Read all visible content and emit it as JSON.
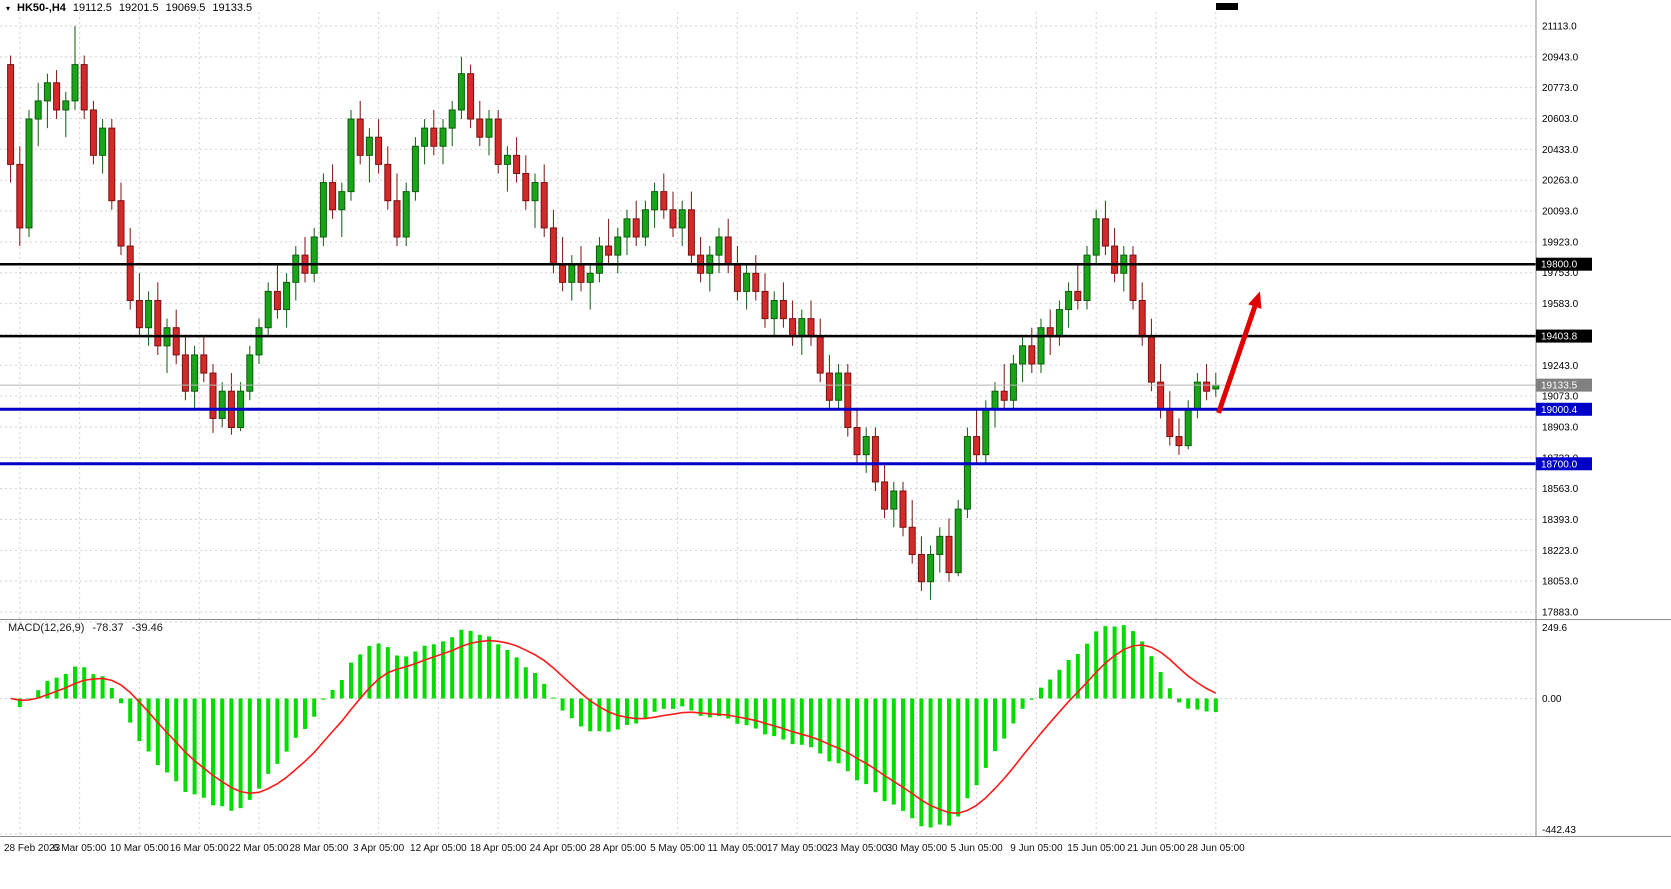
{
  "header": {
    "symbol": "HK50-,H4",
    "open": "19112.5",
    "high": "19201.5",
    "low": "19069.5",
    "close": "19133.5"
  },
  "colors": {
    "bull": "#1aa41a",
    "bull_border": "#0b5e0b",
    "bear": "#d22a2a",
    "bear_border": "#7c1010",
    "macd_hist": "#00dc00",
    "macd_signal": "#ff1a1a",
    "grid": "#d2d2d2",
    "level_black": "#000000",
    "level_blue": "#0000c8",
    "current_price_bg": "#808080",
    "arrow": "#e00000"
  },
  "chart_data": {
    "type": "candlestick",
    "title": "HK50- H4 candlestick chart with MACD(12,26,9), support/resistance levels and up-trend arrow",
    "symbol": "HK50-",
    "timeframe": "H4",
    "candles": [
      [
        20900,
        20950,
        20250,
        20350
      ],
      [
        20350,
        20450,
        19900,
        20000
      ],
      [
        20000,
        20650,
        19950,
        20600
      ],
      [
        20600,
        20800,
        20450,
        20700
      ],
      [
        20700,
        20850,
        20550,
        20800
      ],
      [
        20800,
        20870,
        20600,
        20650
      ],
      [
        20650,
        20750,
        20500,
        20700
      ],
      [
        20700,
        21113,
        20650,
        20900
      ],
      [
        20900,
        20950,
        20600,
        20650
      ],
      [
        20650,
        20700,
        20350,
        20400
      ],
      [
        20400,
        20600,
        20300,
        20550
      ],
      [
        20550,
        20600,
        20100,
        20150
      ],
      [
        20150,
        20250,
        19850,
        19900
      ],
      [
        19900,
        20000,
        19550,
        19600
      ],
      [
        19600,
        19750,
        19400,
        19450
      ],
      [
        19450,
        19650,
        19350,
        19600
      ],
      [
        19600,
        19700,
        19300,
        19350
      ],
      [
        19350,
        19500,
        19200,
        19450
      ],
      [
        19450,
        19550,
        19250,
        19300
      ],
      [
        19300,
        19400,
        19050,
        19100
      ],
      [
        19100,
        19350,
        19000,
        19300
      ],
      [
        19300,
        19400,
        19150,
        19200
      ],
      [
        19200,
        19250,
        18870,
        18950
      ],
      [
        18950,
        19150,
        18900,
        19100
      ],
      [
        19100,
        19200,
        18860,
        18900
      ],
      [
        18900,
        19150,
        18880,
        19100
      ],
      [
        19100,
        19350,
        19050,
        19300
      ],
      [
        19300,
        19500,
        19250,
        19450
      ],
      [
        19450,
        19700,
        19400,
        19650
      ],
      [
        19650,
        19800,
        19500,
        19550
      ],
      [
        19550,
        19750,
        19450,
        19700
      ],
      [
        19700,
        19900,
        19600,
        19850
      ],
      [
        19850,
        19950,
        19700,
        19750
      ],
      [
        19750,
        20000,
        19700,
        19950
      ],
      [
        19950,
        20300,
        19900,
        20250
      ],
      [
        20250,
        20350,
        20050,
        20100
      ],
      [
        20100,
        20250,
        19950,
        20200
      ],
      [
        20200,
        20650,
        20150,
        20600
      ],
      [
        20600,
        20700,
        20350,
        20400
      ],
      [
        20400,
        20550,
        20250,
        20500
      ],
      [
        20500,
        20600,
        20300,
        20350
      ],
      [
        20350,
        20450,
        20100,
        20150
      ],
      [
        20150,
        20300,
        19900,
        19950
      ],
      [
        19950,
        20250,
        19900,
        20200
      ],
      [
        20200,
        20500,
        20150,
        20450
      ],
      [
        20450,
        20600,
        20350,
        20550
      ],
      [
        20550,
        20650,
        20400,
        20450
      ],
      [
        20450,
        20600,
        20350,
        20550
      ],
      [
        20550,
        20700,
        20450,
        20650
      ],
      [
        20650,
        20943,
        20600,
        20850
      ],
      [
        20850,
        20900,
        20550,
        20600
      ],
      [
        20600,
        20700,
        20450,
        20500
      ],
      [
        20500,
        20650,
        20400,
        20600
      ],
      [
        20600,
        20650,
        20300,
        20350
      ],
      [
        20350,
        20450,
        20200,
        20400
      ],
      [
        20400,
        20500,
        20250,
        20300
      ],
      [
        20300,
        20400,
        20100,
        20150
      ],
      [
        20150,
        20300,
        20000,
        20250
      ],
      [
        20250,
        20350,
        19950,
        20000
      ],
      [
        20000,
        20100,
        19750,
        19800
      ],
      [
        19800,
        19950,
        19650,
        19700
      ],
      [
        19700,
        19850,
        19600,
        19800
      ],
      [
        19800,
        19900,
        19650,
        19700
      ],
      [
        19700,
        19800,
        19550,
        19750
      ],
      [
        19750,
        19950,
        19700,
        19900
      ],
      [
        19900,
        20050,
        19800,
        19850
      ],
      [
        19850,
        20000,
        19750,
        19950
      ],
      [
        19950,
        20100,
        19850,
        20050
      ],
      [
        20050,
        20150,
        19900,
        19950
      ],
      [
        19950,
        20150,
        19900,
        20100
      ],
      [
        20100,
        20250,
        20000,
        20200
      ],
      [
        20200,
        20300,
        20050,
        20100
      ],
      [
        20100,
        20200,
        19950,
        20000
      ],
      [
        20000,
        20150,
        19900,
        20100
      ],
      [
        20100,
        20200,
        19800,
        19850
      ],
      [
        19850,
        19950,
        19700,
        19750
      ],
      [
        19750,
        19900,
        19650,
        19850
      ],
      [
        19850,
        20000,
        19750,
        19950
      ],
      [
        19950,
        20050,
        19750,
        19800
      ],
      [
        19800,
        19900,
        19600,
        19650
      ],
      [
        19650,
        19800,
        19550,
        19750
      ],
      [
        19750,
        19850,
        19600,
        19650
      ],
      [
        19650,
        19750,
        19450,
        19500
      ],
      [
        19500,
        19650,
        19400,
        19600
      ],
      [
        19600,
        19700,
        19450,
        19500
      ],
      [
        19500,
        19600,
        19350,
        19400
      ],
      [
        19400,
        19550,
        19300,
        19500
      ],
      [
        19500,
        19600,
        19350,
        19400
      ],
      [
        19400,
        19500,
        19150,
        19200
      ],
      [
        19200,
        19300,
        19000,
        19050
      ],
      [
        19050,
        19250,
        19000,
        19200
      ],
      [
        19200,
        19250,
        18850,
        18900
      ],
      [
        18900,
        19000,
        18700,
        18750
      ],
      [
        18750,
        18900,
        18650,
        18850
      ],
      [
        18850,
        18900,
        18550,
        18600
      ],
      [
        18600,
        18700,
        18400,
        18450
      ],
      [
        18450,
        18600,
        18350,
        18550
      ],
      [
        18550,
        18600,
        18300,
        18350
      ],
      [
        18350,
        18500,
        18150,
        18200
      ],
      [
        18200,
        18300,
        18000,
        18050
      ],
      [
        18050,
        18250,
        17950,
        18200
      ],
      [
        18200,
        18350,
        18100,
        18300
      ],
      [
        18300,
        18400,
        18050,
        18100
      ],
      [
        18100,
        18500,
        18080,
        18450
      ],
      [
        18450,
        18900,
        18400,
        18850
      ],
      [
        18850,
        19000,
        18700,
        18750
      ],
      [
        18750,
        19050,
        18700,
        19000
      ],
      [
        19000,
        19150,
        18900,
        19100
      ],
      [
        19100,
        19250,
        19000,
        19050
      ],
      [
        19050,
        19300,
        19000,
        19250
      ],
      [
        19250,
        19400,
        19150,
        19350
      ],
      [
        19350,
        19450,
        19200,
        19250
      ],
      [
        19250,
        19500,
        19200,
        19450
      ],
      [
        19450,
        19550,
        19300,
        19400
      ],
      [
        19400,
        19600,
        19350,
        19550
      ],
      [
        19550,
        19700,
        19450,
        19650
      ],
      [
        19650,
        19800,
        19550,
        19600
      ],
      [
        19600,
        19900,
        19550,
        19850
      ],
      [
        19850,
        20100,
        19800,
        20050
      ],
      [
        20050,
        20150,
        19850,
        19900
      ],
      [
        19900,
        20000,
        19700,
        19750
      ],
      [
        19750,
        19900,
        19650,
        19850
      ],
      [
        19850,
        19900,
        19550,
        19600
      ],
      [
        19600,
        19700,
        19350,
        19400
      ],
      [
        19400,
        19500,
        19100,
        19150
      ],
      [
        19150,
        19250,
        18950,
        19000
      ],
      [
        19000,
        19100,
        18800,
        18850
      ],
      [
        18850,
        18950,
        18750,
        18800
      ],
      [
        18800,
        19050,
        18780,
        19000
      ],
      [
        19000,
        19200,
        18950,
        19150
      ],
      [
        19150,
        19250,
        19050,
        19100
      ],
      [
        19112.5,
        19201.5,
        19069.5,
        19133.5
      ]
    ],
    "x_labels": [
      {
        "label": "28 Feb 2023",
        "idx": 1
      },
      {
        "label": "6 Mar 05:00",
        "idx": 7.5
      },
      {
        "label": "10 Mar 05:00",
        "idx": 14
      },
      {
        "label": "16 Mar 05:00",
        "idx": 20.5
      },
      {
        "label": "22 Mar 05:00",
        "idx": 27
      },
      {
        "label": "28 Mar 05:00",
        "idx": 33.5
      },
      {
        "label": "3 Apr 05:00",
        "idx": 40
      },
      {
        "label": "12 Apr 05:00",
        "idx": 46.5
      },
      {
        "label": "18 Apr 05:00",
        "idx": 53
      },
      {
        "label": "24 Apr 05:00",
        "idx": 59.5
      },
      {
        "label": "28 Apr 05:00",
        "idx": 66
      },
      {
        "label": "5 May 05:00",
        "idx": 72.5
      },
      {
        "label": "11 May 05:00",
        "idx": 79
      },
      {
        "label": "17 May 05:00",
        "idx": 85.5
      },
      {
        "label": "23 May 05:00",
        "idx": 92
      },
      {
        "label": "30 May 05:00",
        "idx": 98.5
      },
      {
        "label": "5 Jun 05:00",
        "idx": 105
      },
      {
        "label": "9 Jun 05:00",
        "idx": 111.5
      },
      {
        "label": "15 Jun 05:00",
        "idx": 118
      },
      {
        "label": "21 Jun 05:00",
        "idx": 124.5
      },
      {
        "label": "28 Jun 05:00",
        "idx": 131
      }
    ],
    "y_axis": {
      "min": 17850,
      "max": 21190,
      "ticks": [
        "21113.0",
        "20943.0",
        "20773.0",
        "20603.0",
        "20433.0",
        "20263.0",
        "20093.0",
        "19923.0",
        "19753.0",
        "19583.0",
        "19413.0",
        "19243.0",
        "19073.0",
        "18903.0",
        "18733.0",
        "18563.0",
        "18393.0",
        "18223.0",
        "18053.0",
        "17883.0"
      ]
    },
    "hlines": [
      {
        "label": "19800.0",
        "value": 19800.0,
        "color": "#000000",
        "width": 2.5
      },
      {
        "label": "19403.8",
        "value": 19403.8,
        "color": "#000000",
        "width": 2.5
      },
      {
        "label": "19000.4",
        "value": 19000.4,
        "color": "#0000c8",
        "width": 3
      },
      {
        "label": "18700.0",
        "value": 18700.0,
        "color": "#0000c8",
        "width": 3
      }
    ],
    "current_price": {
      "label": "19133.5",
      "value": 19133.5
    },
    "macd": {
      "name": "MACD(12,26,9)",
      "value": "-78.37",
      "signal_value": "-39.46",
      "params": [
        12,
        26,
        9
      ],
      "scale": {
        "max": 249.6,
        "min": -442.43,
        "max_label": "249.6",
        "zero_label": "0.00",
        "min_label": "-442.43"
      },
      "legend": [
        "histogram",
        "signal"
      ]
    },
    "annotation_arrow": {
      "from_idx": 131.3,
      "from_price": 18980,
      "to_idx": 135.8,
      "to_price": 19650,
      "color": "#e00000"
    }
  }
}
